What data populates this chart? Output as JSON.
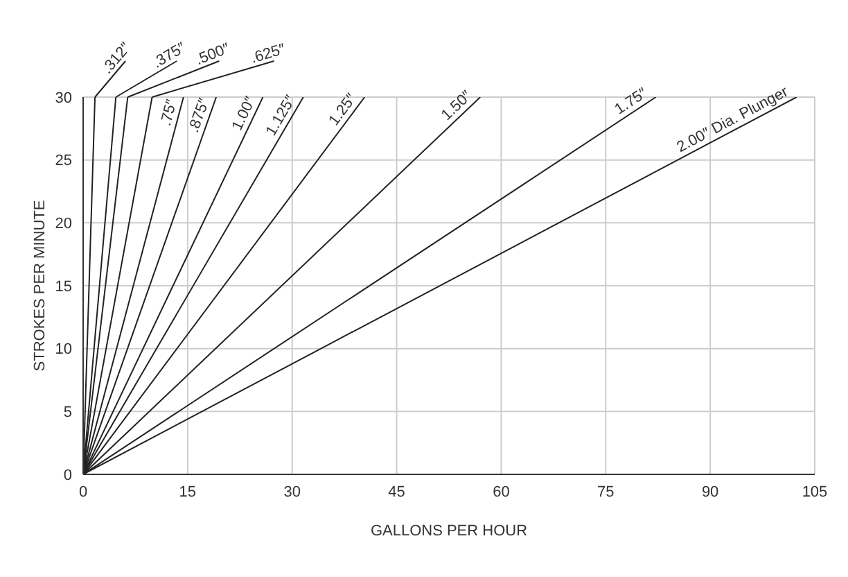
{
  "chart_data": {
    "type": "line",
    "xlabel": "GALLONS PER HOUR",
    "ylabel": "STROKES PER MINUTE",
    "xlim": [
      0,
      105
    ],
    "ylim": [
      0,
      30
    ],
    "xticks": [
      0,
      15,
      30,
      45,
      60,
      75,
      90,
      105
    ],
    "yticks": [
      0,
      5,
      10,
      15,
      20,
      25,
      30
    ],
    "grid": true,
    "series": [
      {
        "name": ".312″",
        "color": "#222222",
        "x": [
          0,
          1.7
        ],
        "values": [
          0,
          30
        ]
      },
      {
        "name": ".375″",
        "color": "#222222",
        "x": [
          0,
          4.7
        ],
        "values": [
          0,
          30
        ]
      },
      {
        "name": ".500″",
        "color": "#222222",
        "x": [
          0,
          6.4
        ],
        "values": [
          0,
          30
        ]
      },
      {
        "name": ".625″",
        "color": "#222222",
        "x": [
          0,
          9.9
        ],
        "values": [
          0,
          30
        ]
      },
      {
        "name": ".75″",
        "color": "#222222",
        "x": [
          0,
          14.4
        ],
        "values": [
          0,
          30
        ]
      },
      {
        "name": ".875″",
        "color": "#222222",
        "x": [
          0,
          19.1
        ],
        "values": [
          0,
          30
        ]
      },
      {
        "name": "1.00″",
        "color": "#222222",
        "x": [
          0,
          25.8
        ],
        "values": [
          0,
          30
        ]
      },
      {
        "name": "1.125″",
        "color": "#222222",
        "x": [
          0,
          31.6
        ],
        "values": [
          0,
          30
        ]
      },
      {
        "name": "1.25″",
        "color": "#222222",
        "x": [
          0,
          40.4
        ],
        "values": [
          0,
          30
        ]
      },
      {
        "name": "1.50″",
        "color": "#222222",
        "x": [
          0,
          57
        ],
        "values": [
          0,
          30
        ]
      },
      {
        "name": "1.75″",
        "color": "#222222",
        "x": [
          0,
          82.2
        ],
        "values": [
          0,
          30
        ]
      },
      {
        "name": "2.00″ Dia. Plunger",
        "color": "#222222",
        "x": [
          0,
          102.4
        ],
        "values": [
          0,
          30
        ]
      }
    ]
  }
}
